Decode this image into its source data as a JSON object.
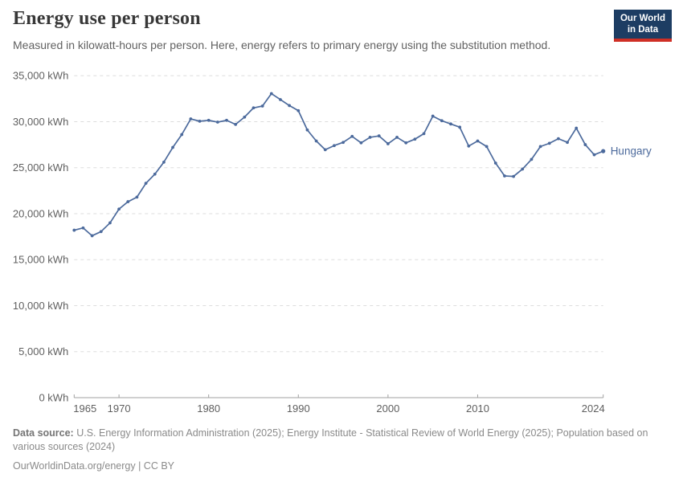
{
  "header": {
    "title": "Energy use per person",
    "subtitle": "Measured in kilowatt-hours per person. Here, energy refers to primary energy using the substitution method.",
    "logo": {
      "line1": "Our World",
      "line2": "in Data"
    }
  },
  "colors": {
    "line": "#4C6A9C",
    "grid": "#dddddd",
    "axis": "#a1a1a1",
    "tick_label": "#5f5f5f",
    "logo_bg": "#1d3d63",
    "logo_bar": "#cf2f25"
  },
  "chart_data": {
    "type": "line",
    "title": "Energy use per person",
    "ylabel": "",
    "xlabel": "",
    "unit": "kWh",
    "grid": "horizontal-dashed",
    "legend_position": "end-of-line-label",
    "xlim": [
      1965,
      2024
    ],
    "ylim": [
      0,
      35000
    ],
    "x": [
      1965,
      1966,
      1967,
      1968,
      1969,
      1970,
      1971,
      1972,
      1973,
      1974,
      1975,
      1976,
      1977,
      1978,
      1979,
      1980,
      1981,
      1982,
      1983,
      1984,
      1985,
      1986,
      1987,
      1988,
      1989,
      1990,
      1991,
      1992,
      1993,
      1994,
      1995,
      1996,
      1997,
      1998,
      1999,
      2000,
      2001,
      2002,
      2003,
      2004,
      2005,
      2006,
      2007,
      2008,
      2009,
      2010,
      2011,
      2012,
      2013,
      2014,
      2015,
      2016,
      2017,
      2018,
      2019,
      2020,
      2021,
      2022,
      2023,
      2024
    ],
    "series": [
      {
        "name": "Hungary",
        "values": [
          18200,
          18450,
          17600,
          18050,
          19000,
          20500,
          21300,
          21800,
          23300,
          24300,
          25600,
          27200,
          28600,
          30300,
          30050,
          30150,
          29950,
          30150,
          29700,
          30500,
          31500,
          31700,
          33050,
          32400,
          31750,
          31200,
          29100,
          27900,
          26950,
          27400,
          27750,
          28400,
          27700,
          28300,
          28450,
          27600,
          28300,
          27700,
          28100,
          28700,
          30600,
          30100,
          29750,
          29400,
          27350,
          27900,
          27300,
          25500,
          24100,
          24050,
          24850,
          25900,
          27300,
          27650,
          28150,
          27750,
          29300,
          27500,
          26400,
          26800
        ]
      }
    ],
    "yticks": [
      {
        "value": 0,
        "label": "0 kWh"
      },
      {
        "value": 5000,
        "label": "5,000 kWh"
      },
      {
        "value": 10000,
        "label": "10,000 kWh"
      },
      {
        "value": 15000,
        "label": "15,000 kWh"
      },
      {
        "value": 20000,
        "label": "20,000 kWh"
      },
      {
        "value": 25000,
        "label": "25,000 kWh"
      },
      {
        "value": 30000,
        "label": "30,000 kWh"
      },
      {
        "value": 35000,
        "label": "35,000 kWh"
      }
    ],
    "xticks": [
      {
        "value": 1965,
        "label": "1965"
      },
      {
        "value": 1970,
        "label": "1970"
      },
      {
        "value": 1980,
        "label": "1980"
      },
      {
        "value": 1990,
        "label": "1990"
      },
      {
        "value": 2000,
        "label": "2000"
      },
      {
        "value": 2010,
        "label": "2010"
      },
      {
        "value": 2024,
        "label": "2024"
      }
    ]
  },
  "footer": {
    "datasource_label": "Data source:",
    "datasource_text": " U.S. Energy Information Administration (2025); Energy Institute - Statistical Review of World Energy (2025); Population based on various sources (2024)",
    "link_text": "OurWorldinData.org/energy | CC BY"
  }
}
